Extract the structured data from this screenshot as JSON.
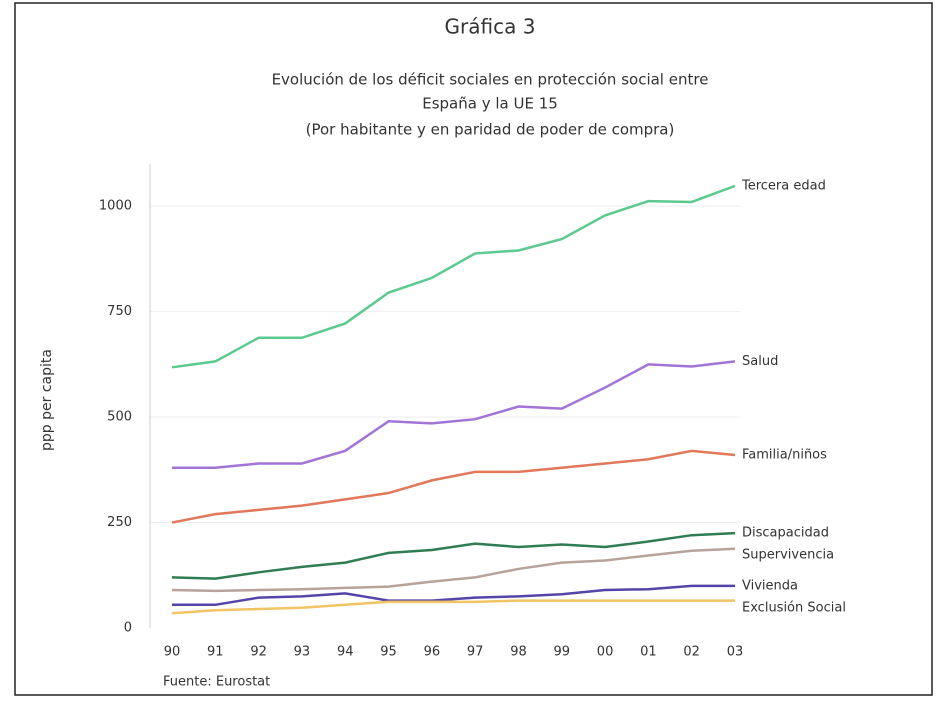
{
  "chart_data": {
    "type": "line",
    "title": "Gráfica 3",
    "subtitle": [
      "Evolución de los déficit sociales en protección social entre",
      "España y la UE 15",
      "(Por habitante y en paridad de poder de compra)"
    ],
    "y_label": "ppp per capita",
    "source": "Fuente: Eurostat",
    "categories": [
      "90",
      "91",
      "92",
      "93",
      "94",
      "95",
      "96",
      "97",
      "98",
      "99",
      "00",
      "01",
      "02",
      "03"
    ],
    "ylim": [
      0,
      1100
    ],
    "yticks": [
      0,
      250,
      500,
      750,
      1000
    ],
    "grid": true,
    "series": [
      {
        "name": "Tercera edad",
        "color": "#5cc98f",
        "values": [
          618,
          632,
          688,
          688,
          722,
          795,
          830,
          888,
          895,
          922,
          978,
          1012,
          1010,
          1048
        ]
      },
      {
        "name": "Salud",
        "color": "#a274d6",
        "values": [
          380,
          380,
          390,
          390,
          420,
          490,
          485,
          495,
          525,
          520,
          570,
          625,
          620,
          632
        ]
      },
      {
        "name": "Familia/niños",
        "color": "#e2775a",
        "values": [
          250,
          270,
          280,
          290,
          305,
          320,
          350,
          370,
          370,
          380,
          390,
          400,
          420,
          410
        ]
      },
      {
        "name": "Discapacidad",
        "color": "#2f7d52",
        "values": [
          120,
          117,
          132,
          145,
          155,
          178,
          185,
          200,
          192,
          198,
          192,
          205,
          220,
          225
        ]
      },
      {
        "name": "Supervivencia",
        "color": "#b8a39a",
        "values": [
          90,
          88,
          90,
          92,
          95,
          98,
          110,
          120,
          140,
          155,
          160,
          172,
          183,
          188
        ]
      },
      {
        "name": "Vivienda",
        "color": "#5545a8",
        "values": [
          55,
          55,
          72,
          75,
          82,
          65,
          65,
          72,
          75,
          80,
          90,
          92,
          100,
          100
        ]
      },
      {
        "name": "Exclusión Social",
        "color": "#f2c463",
        "values": [
          35,
          42,
          45,
          48,
          55,
          62,
          62,
          62,
          65,
          65,
          65,
          65,
          65,
          65
        ]
      }
    ]
  }
}
